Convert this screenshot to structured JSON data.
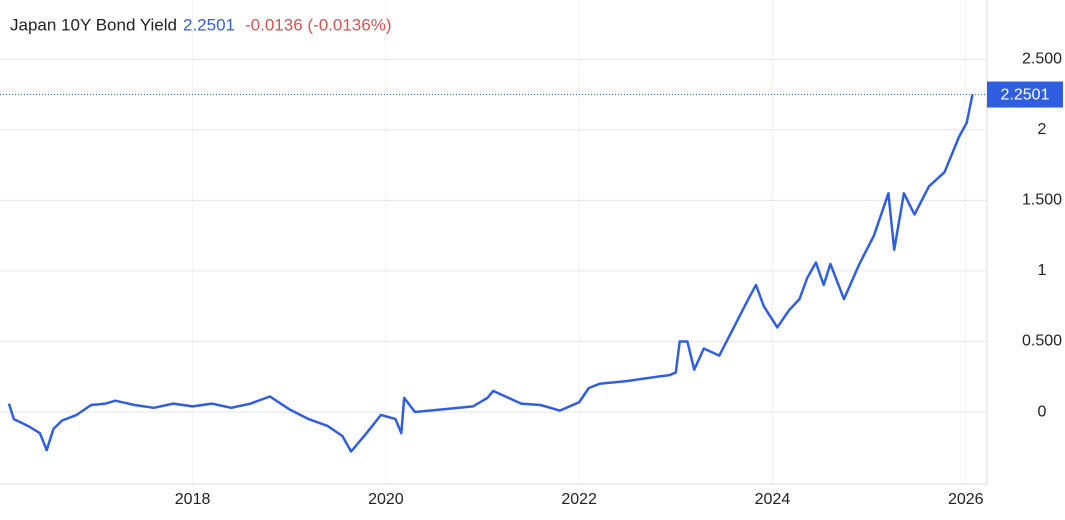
{
  "chart_data": {
    "type": "line",
    "title": "Japan 10Y Bond Yield",
    "last_value": "2.2501",
    "change": "-0.0136 (-0.0136%)",
    "x": [
      2016.1,
      2016.15,
      2016.3,
      2016.42,
      2016.49,
      2016.56,
      2016.65,
      2016.8,
      2016.95,
      2017.1,
      2017.2,
      2017.4,
      2017.6,
      2017.8,
      2018.0,
      2018.2,
      2018.4,
      2018.6,
      2018.8,
      2019.0,
      2019.2,
      2019.4,
      2019.55,
      2019.64,
      2019.8,
      2019.95,
      2020.1,
      2020.16,
      2020.19,
      2020.3,
      2020.6,
      2020.9,
      2021.05,
      2021.11,
      2021.4,
      2021.6,
      2021.8,
      2022.0,
      2022.1,
      2022.21,
      2022.5,
      2022.8,
      2022.93,
      2023.0,
      2023.04,
      2023.12,
      2023.19,
      2023.29,
      2023.45,
      2023.6,
      2023.75,
      2023.83,
      2023.91,
      2024.05,
      2024.17,
      2024.28,
      2024.36,
      2024.45,
      2024.53,
      2024.6,
      2024.74,
      2024.9,
      2025.05,
      2025.2,
      2025.26,
      2025.36,
      2025.47,
      2025.62,
      2025.78,
      2025.93,
      2026.01,
      2026.07
    ],
    "values": [
      0.06,
      -0.05,
      -0.1,
      -0.15,
      -0.27,
      -0.12,
      -0.06,
      -0.02,
      0.05,
      0.06,
      0.08,
      0.05,
      0.03,
      0.06,
      0.04,
      0.06,
      0.03,
      0.06,
      0.11,
      0.02,
      -0.05,
      -0.1,
      -0.17,
      -0.28,
      -0.15,
      -0.02,
      -0.05,
      -0.15,
      0.1,
      0.0,
      0.02,
      0.04,
      0.1,
      0.15,
      0.06,
      0.05,
      0.01,
      0.07,
      0.17,
      0.2,
      0.22,
      0.25,
      0.26,
      0.28,
      0.5,
      0.5,
      0.3,
      0.45,
      0.4,
      0.6,
      0.8,
      0.9,
      0.75,
      0.6,
      0.72,
      0.8,
      0.95,
      1.06,
      0.9,
      1.05,
      0.8,
      1.05,
      1.25,
      1.55,
      1.15,
      1.55,
      1.4,
      1.6,
      1.7,
      1.95,
      2.05,
      2.2501
    ],
    "color": "#2f5fe0",
    "xlim": [
      2016.09,
      2026.22
    ],
    "xticks": [
      2018,
      2020,
      2022,
      2024,
      2026
    ],
    "ylim": [
      -0.51,
      2.92
    ],
    "yticks": [
      {
        "value": 2.5,
        "label": "2.500"
      },
      2,
      {
        "value": 1.5,
        "label": "1.500"
      },
      1,
      {
        "value": 0.5,
        "label": "0.500"
      },
      0
    ],
    "grid": true
  }
}
